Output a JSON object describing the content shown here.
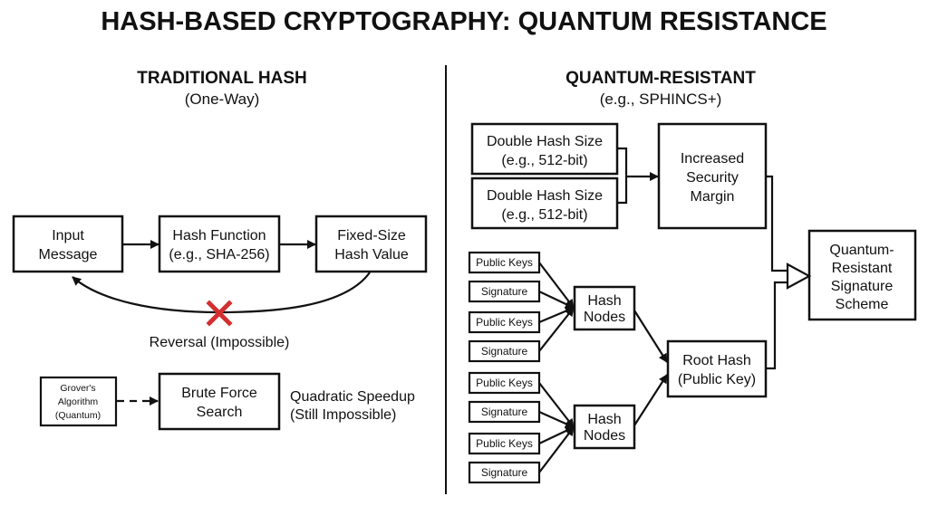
{
  "title": "HASH-BASED CRYPTOGRAPHY: QUANTUM RESISTANCE",
  "left": {
    "heading": "TRADITIONAL HASH",
    "subheading": "(One-Way)",
    "input": [
      "Input",
      "Message"
    ],
    "hash_function": [
      "Hash Function",
      "(e.g., SHA-256)"
    ],
    "hash_value": [
      "Fixed-Size",
      "Hash Value"
    ],
    "reversal": "Reversal (Impossible)",
    "grover": [
      "Grover's",
      "Algorithm",
      "(Quantum)"
    ],
    "brute_force": [
      "Brute Force",
      "Search"
    ],
    "quadratic": [
      "Quadratic Speedup",
      "(Still Impossible)"
    ]
  },
  "right": {
    "heading": "QUANTUM-RESISTANT",
    "subheading": "(e.g., SPHINCS+)",
    "double_hash_1": [
      "Double Hash Size",
      "(e.g., 512-bit)"
    ],
    "double_hash_2": [
      "Double Hash Size",
      "(e.g., 512-bit)"
    ],
    "margin": [
      "Increased",
      "Security",
      "Margin"
    ],
    "leaves": [
      "Public Keys",
      "Signature",
      "Public Keys",
      "Signature",
      "Public Keys",
      "Signature",
      "Public Keys",
      "Signature"
    ],
    "hash_nodes_1": [
      "Hash",
      "Nodes"
    ],
    "hash_nodes_2": [
      "Hash",
      "Nodes"
    ],
    "root": [
      "Root Hash",
      "(Public Key)"
    ],
    "scheme": [
      "Quantum-",
      "Resistant",
      "Signature",
      "Scheme"
    ]
  },
  "colors": {
    "stroke": "#111111",
    "cross": "#d32f2f"
  }
}
